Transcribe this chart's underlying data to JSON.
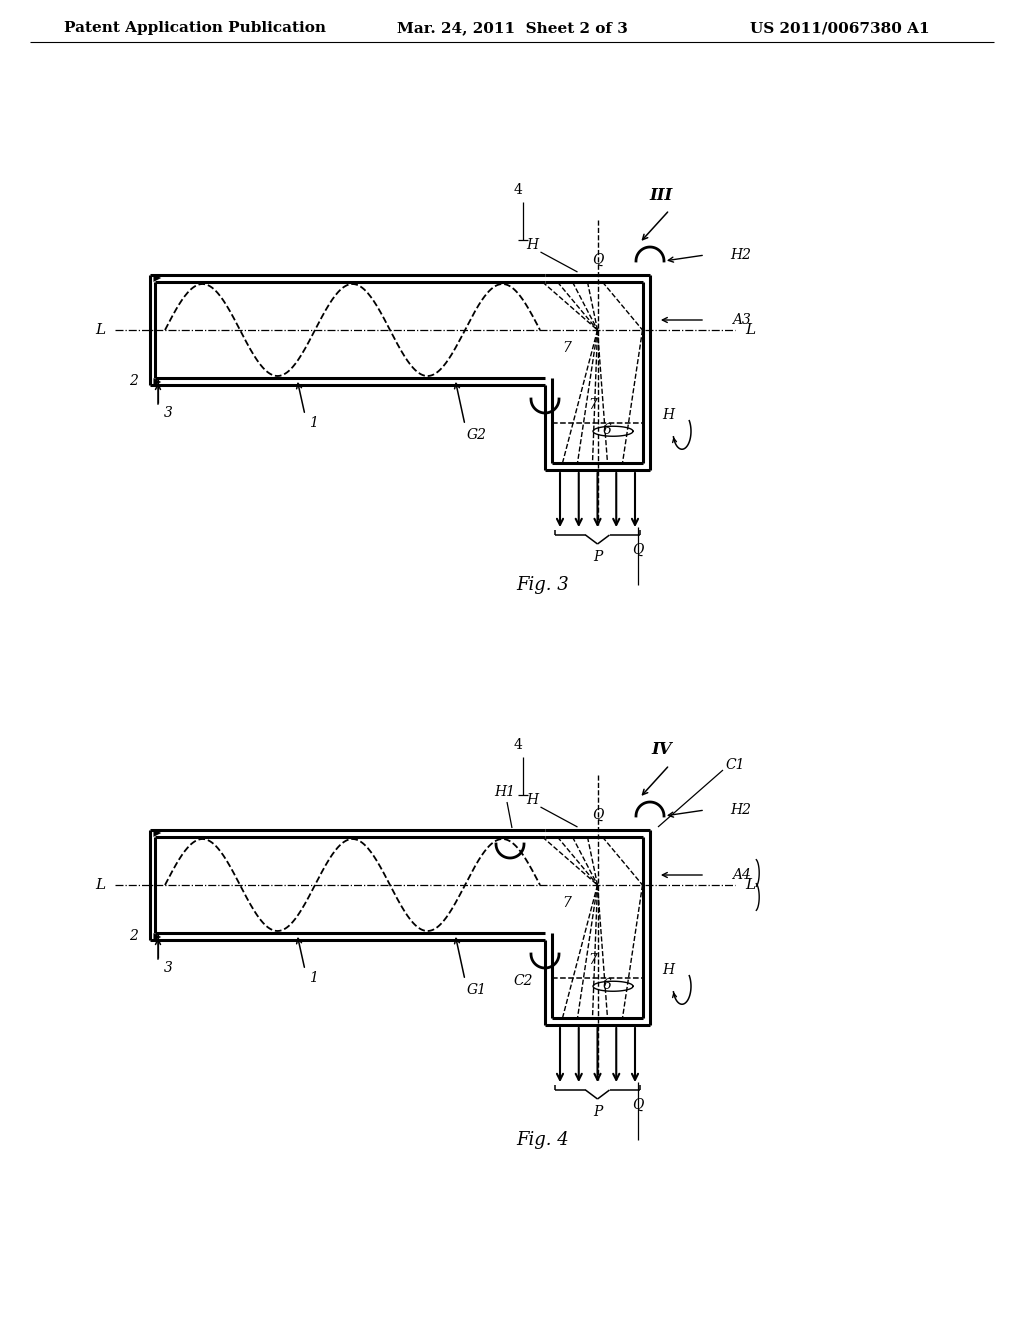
{
  "background_color": "#ffffff",
  "header_left": "Patent Application Publication",
  "header_center": "Mar. 24, 2011  Sheet 2 of 3",
  "header_right": "US 2011/0067380 A1",
  "fig3_label": "Fig. 3",
  "fig4_label": "Fig. 4"
}
